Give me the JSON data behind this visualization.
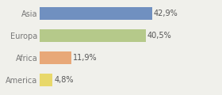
{
  "categories": [
    "America",
    "Africa",
    "Europa",
    "Asia"
  ],
  "values": [
    4.8,
    11.9,
    40.5,
    42.9
  ],
  "labels": [
    "4,8%",
    "11,9%",
    "40,5%",
    "42,9%"
  ],
  "bar_colors": [
    "#e8d86a",
    "#e8a878",
    "#b5c98a",
    "#7090c0"
  ],
  "background_color": "#f0f0eb",
  "xlim": [
    0,
    68
  ],
  "label_fontsize": 7.0,
  "tick_fontsize": 7.0,
  "bar_height": 0.58
}
